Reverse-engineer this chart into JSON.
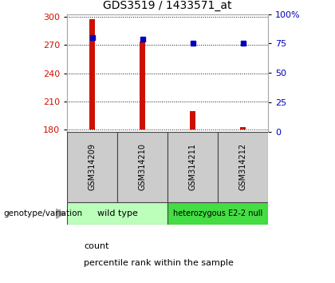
{
  "title": "GDS3519 / 1433571_at",
  "samples": [
    "GSM314209",
    "GSM314210",
    "GSM314211",
    "GSM314212"
  ],
  "bar_values": [
    298,
    274,
    200,
    183
  ],
  "dot_values_pct": [
    80,
    79,
    75,
    75
  ],
  "baseline": 180,
  "ylim_left": [
    178,
    303
  ],
  "ylim_right": [
    0,
    100
  ],
  "yticks_left": [
    180,
    210,
    240,
    270,
    300
  ],
  "yticks_right": [
    0,
    25,
    50,
    75,
    100
  ],
  "bar_color": "#cc1100",
  "dot_color": "#0000bb",
  "grid_color": "#111111",
  "bg_color": "#ffffff",
  "plot_bg": "#ffffff",
  "groups": [
    {
      "label": "wild type",
      "samples": [
        0,
        1
      ],
      "color": "#bbffbb"
    },
    {
      "label": "heterozygous E2-2 null",
      "samples": [
        2,
        3
      ],
      "color": "#44dd44"
    }
  ],
  "genotype_label": "genotype/variation",
  "legend_count": "count",
  "legend_pct": "percentile rank within the sample",
  "title_fontsize": 10,
  "tick_fontsize": 8,
  "sample_fontsize": 7,
  "group_fontsize": 8,
  "legend_fontsize": 8
}
